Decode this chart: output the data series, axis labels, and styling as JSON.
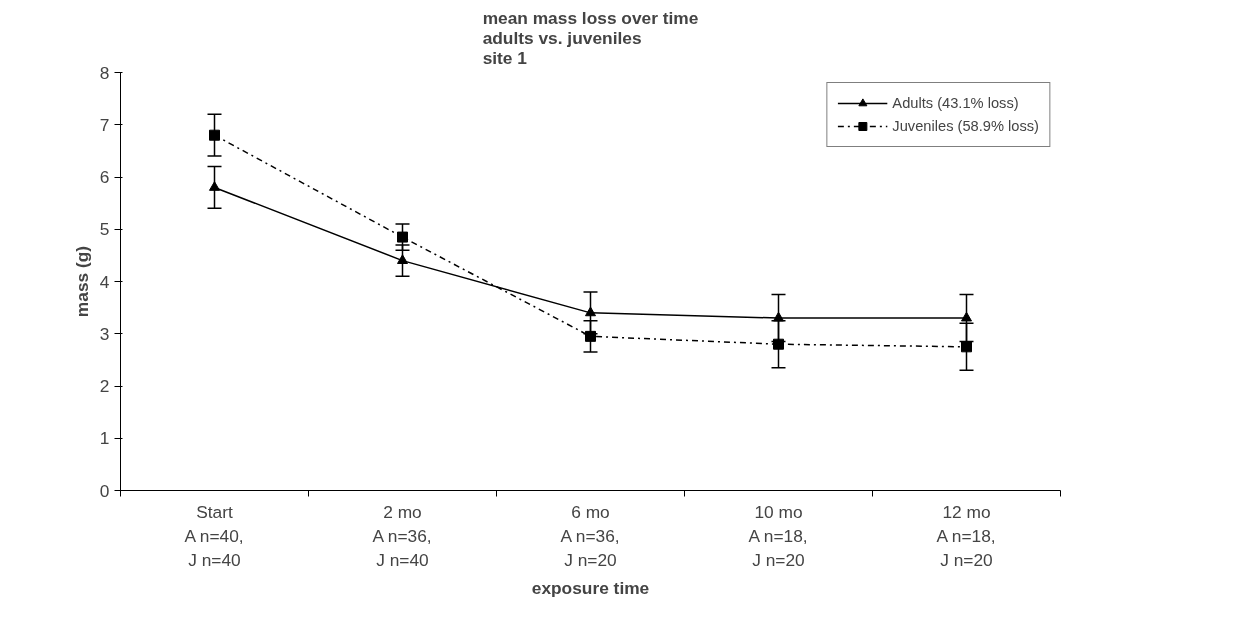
{
  "chart_data": {
    "type": "line",
    "title": "mean mass loss over time\nadults vs. juveniles\nsite 1",
    "xlabel": "exposure time",
    "ylabel": "mass (g)",
    "categories": [
      "Start\nA n=40,\nJ n=40",
      "2 mo\nA n=36,\nJ n=40",
      "6 mo\nA n=36,\nJ n=20",
      "10 mo\nA n=18,\nJ n=20",
      "12 mo\nA n=18,\nJ n=20"
    ],
    "series": [
      {
        "name": "Adults (43.1% loss)",
        "color": "#000000",
        "values": [
          5.8,
          4.4,
          3.4,
          3.3,
          3.3
        ],
        "errors": [
          0.4,
          0.3,
          0.4,
          0.45,
          0.45
        ],
        "marker": "triangle",
        "line_style": "solid"
      },
      {
        "name": "Juveniles (58.9% loss)",
        "color": "#000000",
        "values": [
          6.8,
          4.85,
          2.95,
          2.8,
          2.75
        ],
        "errors": [
          0.4,
          0.25,
          0.3,
          0.45,
          0.45
        ],
        "marker": "square",
        "line_style": "dashdot"
      }
    ],
    "ylim": [
      0,
      8
    ],
    "yticks": [
      0,
      1,
      2,
      3,
      4,
      5,
      6,
      7,
      8
    ],
    "grid": false,
    "legend": "top right"
  }
}
